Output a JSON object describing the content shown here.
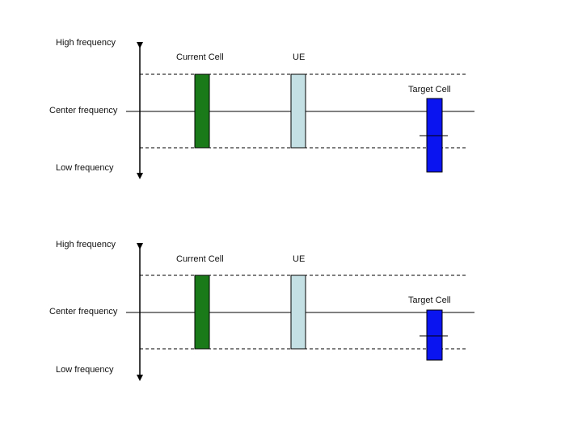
{
  "diagrams": [
    {
      "labels": {
        "high": "High frequency",
        "center": "Center frequency",
        "low": "Low frequency",
        "current_cell": "Current Cell",
        "ue": "UE",
        "target_cell": "Target Cell"
      }
    },
    {
      "labels": {
        "high": "High frequency",
        "center": "Center frequency",
        "low": "Low frequency",
        "current_cell": "Current Cell",
        "ue": "UE",
        "target_cell": "Target Cell"
      }
    }
  ],
  "colors": {
    "current_cell": "#1a7a1a",
    "ue": "#c5e0e4",
    "target_cell": "#0a14f0",
    "line": "#000000"
  }
}
